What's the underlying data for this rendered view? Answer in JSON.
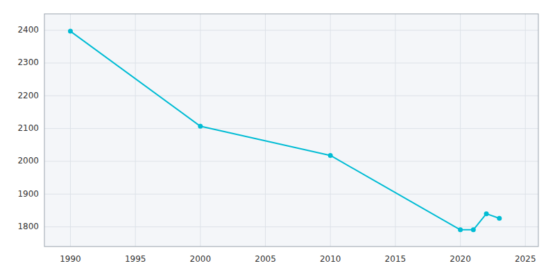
{
  "chart_data": {
    "type": "line",
    "x": [
      1990,
      2000,
      2010,
      2020,
      2021,
      2022,
      2023
    ],
    "values": [
      2397,
      2107,
      2018,
      1791,
      1791,
      1840,
      1826
    ],
    "color": "#00bcd4",
    "marker": "circle",
    "xlim": [
      1988,
      2026
    ],
    "ylim": [
      1740,
      2450
    ],
    "xticks": [
      1990,
      1995,
      2000,
      2005,
      2010,
      2015,
      2020,
      2025
    ],
    "yticks": [
      1800,
      1900,
      2000,
      2100,
      2200,
      2300,
      2400
    ],
    "grid": true
  }
}
